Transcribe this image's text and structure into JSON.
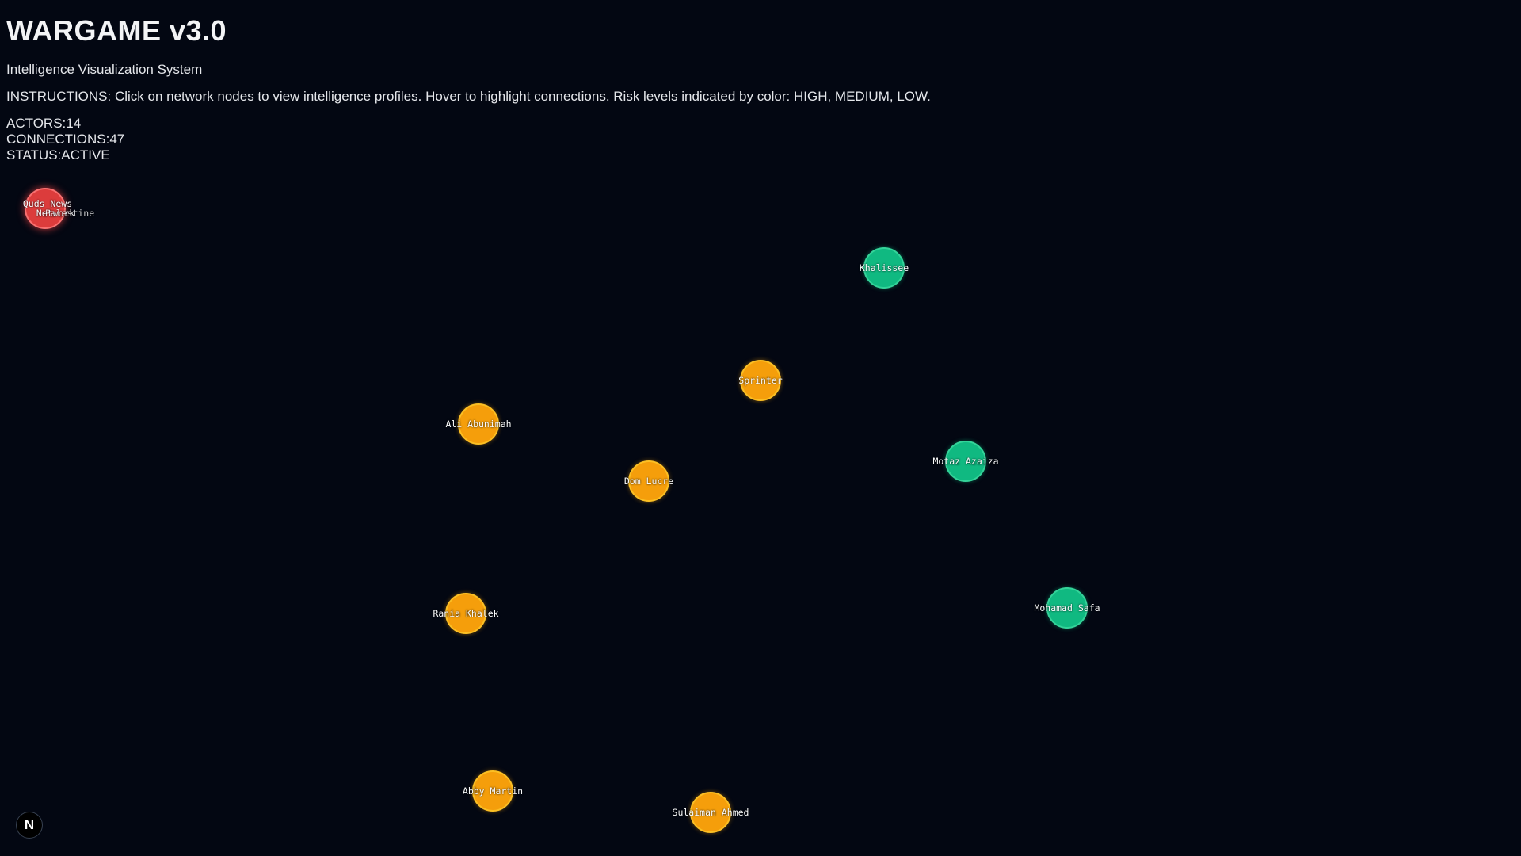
{
  "header": {
    "title": "WARGAME v3.0",
    "subtitle": "Intelligence Visualization System",
    "instructions": "INSTRUCTIONS: Click on network nodes to view intelligence profiles. Hover to highlight connections. Risk levels indicated by color: HIGH, MEDIUM, LOW."
  },
  "stats": {
    "actors": "ACTORS:14",
    "connections": "CONNECTIONS:47",
    "status": "STATUS:ACTIVE"
  },
  "colors": {
    "high": "#dc3c3c",
    "medium": "#f59e0b",
    "low": "#10b981",
    "background": "#030712"
  },
  "nodes": [
    {
      "label": "Khalissee",
      "risk": "low"
    },
    {
      "label": "Sprinter",
      "risk": "medium"
    },
    {
      "label": "Ali Abunimah",
      "risk": "medium"
    },
    {
      "label": "Dom Lucre",
      "risk": "medium"
    },
    {
      "label": "Motaz Azaiza",
      "risk": "low"
    },
    {
      "label": "Mohamad Safa",
      "risk": "low"
    },
    {
      "label": "Rania Khalek",
      "risk": "medium"
    },
    {
      "label": "Abby Martin",
      "risk": "medium"
    },
    {
      "label": "Sulaiman Ahmed",
      "risk": "medium"
    }
  ],
  "cluster": {
    "risk": "high",
    "labels": [
      "Quds News",
      "Network",
      "Palestine"
    ]
  },
  "corner_button": {
    "glyph": "N"
  }
}
